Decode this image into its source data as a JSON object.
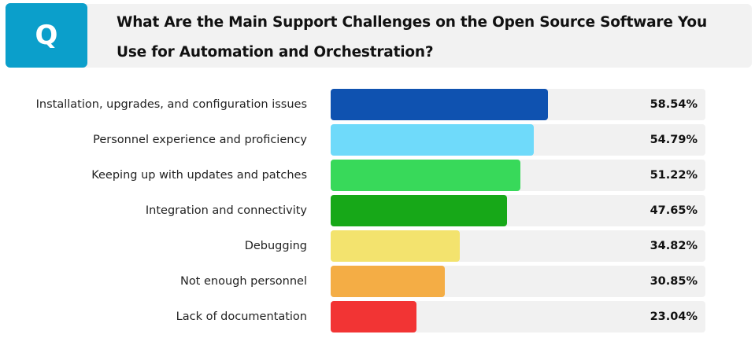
{
  "header": {
    "badge": "Q",
    "title": "What Are the Main Support Challenges on the Open Source Software You Use for Automation and Orchestration?"
  },
  "chart_data": {
    "type": "bar",
    "orientation": "horizontal",
    "title": "What Are the Main Support Challenges on the Open Source Software You Use for Automation and Orchestration?",
    "xlim": [
      0,
      100
    ],
    "unit": "%",
    "categories": [
      "Installation, upgrades, and configuration issues",
      "Personnel experience and proficiency",
      "Keeping up with updates and patches",
      "Integration and connectivity",
      "Debugging",
      "Not enough personnel",
      "Lack of documentation"
    ],
    "values": [
      58.54,
      54.79,
      51.22,
      47.65,
      34.82,
      30.85,
      23.04
    ],
    "labels": [
      "58.54%",
      "54.79%",
      "51.22%",
      "47.65%",
      "34.82%",
      "30.85%",
      "23.04%"
    ],
    "colors": [
      "#0f52b0",
      "#6fdafa",
      "#38d95a",
      "#17a818",
      "#f3e36e",
      "#f4ad45",
      "#f23434"
    ]
  }
}
